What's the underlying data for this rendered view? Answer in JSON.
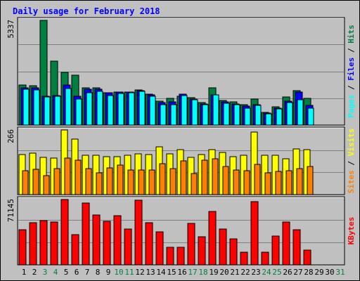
{
  "chart_data": {
    "type": "bar",
    "title": "Daily usage for February 2018",
    "categories": [
      "1",
      "2",
      "3",
      "4",
      "5",
      "6",
      "7",
      "8",
      "9",
      "10",
      "11",
      "12",
      "13",
      "14",
      "15",
      "16",
      "17",
      "18",
      "19",
      "20",
      "21",
      "22",
      "23",
      "24",
      "25",
      "26",
      "27",
      "28",
      "29",
      "30",
      "31"
    ],
    "weekend_days": [
      "3",
      "4",
      "10",
      "11",
      "17",
      "18",
      "24",
      "25",
      "31"
    ],
    "panels": [
      {
        "name": "hits-files-pages",
        "ymax_label": "5337",
        "ylim": [
          0,
          5337
        ],
        "legend": [
          "Pages",
          "Files",
          "Hits"
        ],
        "legend_separator": " / ",
        "series": [
          {
            "name": "Hits",
            "color": "#008040",
            "values": [
              2050,
              2020,
              5337,
              3270,
              2700,
              2530,
              1890,
              1890,
              1660,
              1680,
              1700,
              1790,
              1570,
              1220,
              1360,
              1460,
              1390,
              1150,
              1900,
              1270,
              1180,
              1050,
              1340,
              640,
              930,
              1450,
              1740,
              1350,
              0,
              0,
              0
            ]
          },
          {
            "name": "Files",
            "color": "#0000ff",
            "values": [
              1900,
              1900,
              1480,
              1500,
              2050,
              1460,
              1820,
              1840,
              1640,
              1670,
              1680,
              1760,
              1540,
              1130,
              1180,
              1580,
              1330,
              1090,
              1530,
              1180,
              1090,
              950,
              1030,
              600,
              870,
              1230,
              1700,
              1000,
              0,
              0,
              0
            ]
          },
          {
            "name": "Pages",
            "color": "#00ffff",
            "values": [
              1840,
              1800,
              1420,
              1460,
              1870,
              1340,
              1640,
              1730,
              1520,
              1620,
              1650,
              1720,
              1480,
              1040,
              1050,
              1520,
              1300,
              1030,
              1540,
              1100,
              1040,
              850,
              1000,
              570,
              830,
              1150,
              1290,
              860,
              0,
              0,
              0
            ]
          }
        ]
      },
      {
        "name": "visits-sites",
        "ymax_label": "266",
        "ylim": [
          0,
          266
        ],
        "legend": [
          "Sites",
          "Visits"
        ],
        "legend_separator": " / ",
        "series": [
          {
            "name": "Visits",
            "color": "#ffff00",
            "values": [
              164,
              172,
              152,
              151,
              266,
              229,
              163,
              162,
              157,
              157,
              162,
              169,
              164,
              198,
              167,
              186,
              153,
              165,
              185,
              173,
              157,
              161,
              257,
              162,
              161,
              148,
              187,
              186,
              0,
              0,
              0
            ]
          },
          {
            "name": "Sites",
            "color": "#ff8000",
            "values": [
              97,
              103,
              79,
              108,
              149,
              143,
              107,
              90,
              110,
              120,
              102,
              100,
              102,
              127,
              106,
              139,
              88,
              141,
              148,
              116,
              101,
              97,
              124,
              90,
              95,
              99,
              107,
              115,
              0,
              0,
              0
            ]
          }
        ]
      },
      {
        "name": "kbytes",
        "ymax_label": "71145",
        "ylim": [
          0,
          71145
        ],
        "legend": [
          "KBytes"
        ],
        "legend_separator": "",
        "series": [
          {
            "name": "KBytes",
            "color": "#ff0000",
            "values": [
              38500,
              46000,
              48500,
              47000,
              71145,
              32900,
              67500,
              54000,
              47800,
              53800,
              39000,
              70000,
              46200,
              36300,
              19500,
              19500,
              45500,
              30800,
              58000,
              39000,
              28200,
              14100,
              69000,
              14100,
              31000,
              47000,
              38500,
              15700,
              0,
              0,
              0
            ]
          }
        ]
      }
    ],
    "colors": {
      "background": "#c0c0c0",
      "plot_background": "#c0c0c0",
      "title": "#0000ff",
      "weekday_label": "#000000",
      "weekend_label": "#008040",
      "grid": "#808080"
    }
  }
}
